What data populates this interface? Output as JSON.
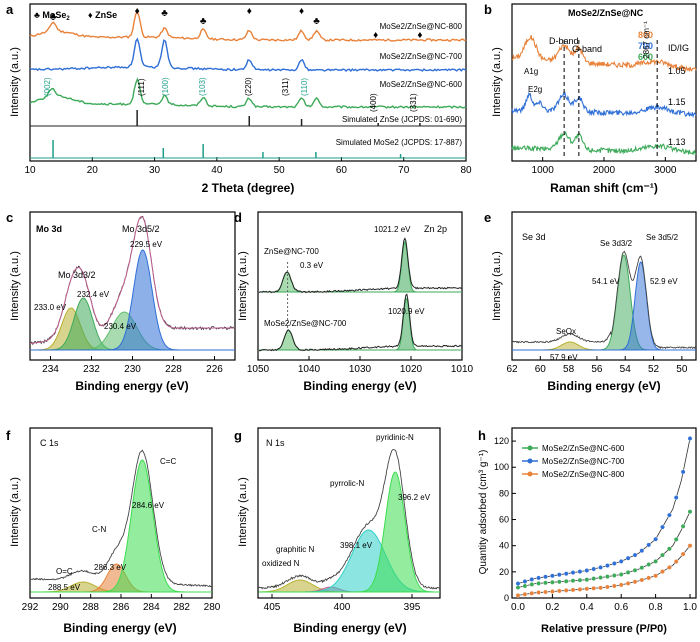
{
  "panels": {
    "a": {
      "letter": "a",
      "xlabel": "2 Theta (degree)",
      "ylabel": "Intensity (a.u.)",
      "x_ticks": [
        "10",
        "20",
        "30",
        "40",
        "50",
        "60",
        "70",
        "80"
      ],
      "legend_mos2": "♣ MoSe",
      "legend_mos2_sub": "2",
      "legend_znse": "♦ ZnSe",
      "curve_labels": [
        "MoSe2/ZnSe@NC-800",
        "MoSe2/ZnSe@NC-700",
        "MoSe2/ZnSe@NC-600",
        "Simulated ZnSe (JCPDS: 01-690)",
        "Simulated MoSe2 (JCPDS: 17-887)"
      ],
      "hkl": [
        "(002)",
        "(111)",
        "(100)",
        "(103)",
        "(220)",
        "(311)",
        "(110)",
        "(400)",
        "(331)"
      ]
    },
    "b": {
      "letter": "b",
      "xlabel": "Raman shift (cm⁻¹)",
      "ylabel": "Intensity (a.u.)",
      "x_ticks": [
        "1000",
        "2000",
        "3000"
      ],
      "title": "MoSe2/ZnSe@NC",
      "legend": [
        "800",
        "700",
        "600"
      ],
      "ratio_label": "ID/IG",
      "ratios": [
        "1.05",
        "1.15",
        "1.13"
      ],
      "bands": [
        "A1g",
        "E2g",
        "D-band",
        "G-band",
        "2867 cm⁻¹"
      ]
    },
    "c": {
      "letter": "c",
      "title": "Mo 3d",
      "xlabel": "Binding energy (eV)",
      "ylabel": "Intensity (a.u.)",
      "x_ticks": [
        "234",
        "232",
        "230",
        "228",
        "226"
      ],
      "peaks": [
        "Mo 3d5/2",
        "Mo 3d3/2",
        "229.5 eV",
        "232.4 eV",
        "233.0 eV",
        "230.4 eV"
      ]
    },
    "d": {
      "letter": "d",
      "title": "Zn 2p",
      "xlabel": "Binding energy (eV)",
      "ylabel": "Intensity (a.u.)",
      "x_ticks": [
        "1050",
        "1040",
        "1030",
        "1020",
        "1010"
      ],
      "labels": [
        "1021.2 eV",
        "ZnSe@NC-700",
        "0.3 eV",
        "MoSe2/ZnSe@NC-700",
        "1020.9 eV"
      ]
    },
    "e": {
      "letter": "e",
      "title": "Se 3d",
      "xlabel": "Binding energy (eV)",
      "ylabel": "Intensity (a.u.)",
      "x_ticks": [
        "62",
        "60",
        "58",
        "56",
        "54",
        "52",
        "50"
      ],
      "labels": [
        "Se 3d3/2",
        "Se 3d5/2",
        "54.1 eV",
        "52.9 eV",
        "SeOx",
        "57.9 eV"
      ]
    },
    "f": {
      "letter": "f",
      "title": "C 1s",
      "xlabel": "Binding energy (eV)",
      "ylabel": "Intensity (a.u.)",
      "x_ticks": [
        "292",
        "290",
        "288",
        "286",
        "284",
        "282",
        "280"
      ],
      "labels": [
        "C=C",
        "284.6 eV",
        "C-N",
        "286.3 eV",
        "O=C",
        "288.5 eV"
      ]
    },
    "g": {
      "letter": "g",
      "title": "N 1s",
      "xlabel": "Binding energy (eV)",
      "ylabel": "Intensity (a.u.)",
      "x_ticks": [
        "405",
        "400",
        "395"
      ],
      "labels": [
        "pyridinic-N",
        "396.2 eV",
        "pyrrolic-N",
        "398.1 eV",
        "graphitic N",
        "oxidized N"
      ]
    },
    "h": {
      "letter": "h",
      "xlabel": "Relative pressure (P/P0)",
      "ylabel": "Quantity adsorbed (cm³ g⁻¹)",
      "x_ticks": [
        "0.0",
        "0.2",
        "0.4",
        "0.6",
        "0.8",
        "1.0"
      ],
      "y_ticks": [
        "0",
        "20",
        "40",
        "60",
        "80",
        "100",
        "120"
      ],
      "legend": [
        "MoSe2/ZnSe@NC-600",
        "MoSe2/ZnSe@NC-700",
        "MoSe2/ZnSe@NC-800"
      ]
    }
  },
  "colors": {
    "s800": "#e8823a",
    "s700": "#2f6fd6",
    "s600": "#3daa5a",
    "znse": "#222222",
    "mose2": "#1e9e8a",
    "pink": "#c06090"
  },
  "chart_data": [
    {
      "type": "line",
      "panel": "a",
      "xlabel": "2 Theta (degree)",
      "ylabel": "Intensity (a.u.)",
      "xlim": [
        10,
        80
      ],
      "znse_peaks": [
        27.2,
        45.2,
        53.6,
        65.9,
        72.6
      ],
      "mose2_peaks": [
        13.7,
        31.4,
        37.8,
        47.4,
        55.9,
        69.5
      ],
      "series": [
        {
          "name": "MoSe2/ZnSe@NC-800",
          "peaks": [
            13.7,
            27.2,
            31.6,
            37.8,
            45.2,
            53.6,
            56.0
          ]
        },
        {
          "name": "MoSe2/ZnSe@NC-700",
          "peaks": [
            27.2,
            31.6,
            45.2,
            53.6
          ]
        },
        {
          "name": "MoSe2/ZnSe@NC-600",
          "peaks": [
            13.5,
            27.2,
            31.6,
            37.8,
            45.2,
            53.6,
            56.0
          ]
        }
      ]
    },
    {
      "type": "line",
      "panel": "b",
      "xlabel": "Raman shift (cm-1)",
      "ylabel": "Intensity (a.u.)",
      "xlim": [
        500,
        3500
      ],
      "series": [
        {
          "name": "800",
          "ID/IG": 1.05
        },
        {
          "name": "700",
          "ID/IG": 1.15
        },
        {
          "name": "600",
          "ID/IG": 1.13
        }
      ]
    },
    {
      "type": "line",
      "panel": "c",
      "xlim": [
        235,
        225
      ],
      "peaks_eV": [
        233.0,
        232.4,
        230.4,
        229.5
      ]
    },
    {
      "type": "line",
      "panel": "d",
      "xlim": [
        1050,
        1010
      ],
      "peaks_eV": [
        1044.3,
        1021.2,
        1044.0,
        1020.9
      ]
    },
    {
      "type": "line",
      "panel": "e",
      "xlim": [
        62,
        49
      ],
      "peaks_eV": [
        57.9,
        54.1,
        52.9
      ]
    },
    {
      "type": "line",
      "panel": "f",
      "xlim": [
        292,
        280
      ],
      "peaks_eV": [
        288.5,
        286.3,
        284.6
      ]
    },
    {
      "type": "line",
      "panel": "g",
      "xlim": [
        405,
        393
      ],
      "peaks_eV": [
        403.0,
        400.8,
        398.1,
        396.2
      ]
    },
    {
      "type": "line",
      "panel": "h",
      "xlabel": "Relative pressure (P/P0)",
      "ylabel": "Quantity adsorbed (cm3 g-1)",
      "xlim": [
        0,
        1
      ],
      "ylim": [
        0,
        130
      ],
      "series": [
        {
          "name": "MoSe2/ZnSe@NC-600",
          "x": [
            0.0,
            0.1,
            0.2,
            0.3,
            0.4,
            0.5,
            0.6,
            0.7,
            0.8,
            0.9,
            0.95,
            1.0
          ],
          "y": [
            8,
            11,
            12,
            13,
            14,
            16,
            18,
            22,
            28,
            40,
            52,
            66
          ]
        },
        {
          "name": "MoSe2/ZnSe@NC-700",
          "x": [
            0.0,
            0.1,
            0.2,
            0.3,
            0.4,
            0.5,
            0.6,
            0.7,
            0.8,
            0.9,
            0.95,
            1.0
          ],
          "y": [
            11,
            15,
            17,
            19,
            21,
            24,
            28,
            34,
            45,
            68,
            90,
            122
          ]
        },
        {
          "name": "MoSe2/ZnSe@NC-800",
          "x": [
            0.0,
            0.1,
            0.2,
            0.3,
            0.4,
            0.5,
            0.6,
            0.7,
            0.8,
            0.9,
            0.95,
            1.0
          ],
          "y": [
            2,
            4,
            5,
            6,
            7,
            8,
            10,
            13,
            17,
            25,
            32,
            40
          ]
        }
      ]
    }
  ]
}
